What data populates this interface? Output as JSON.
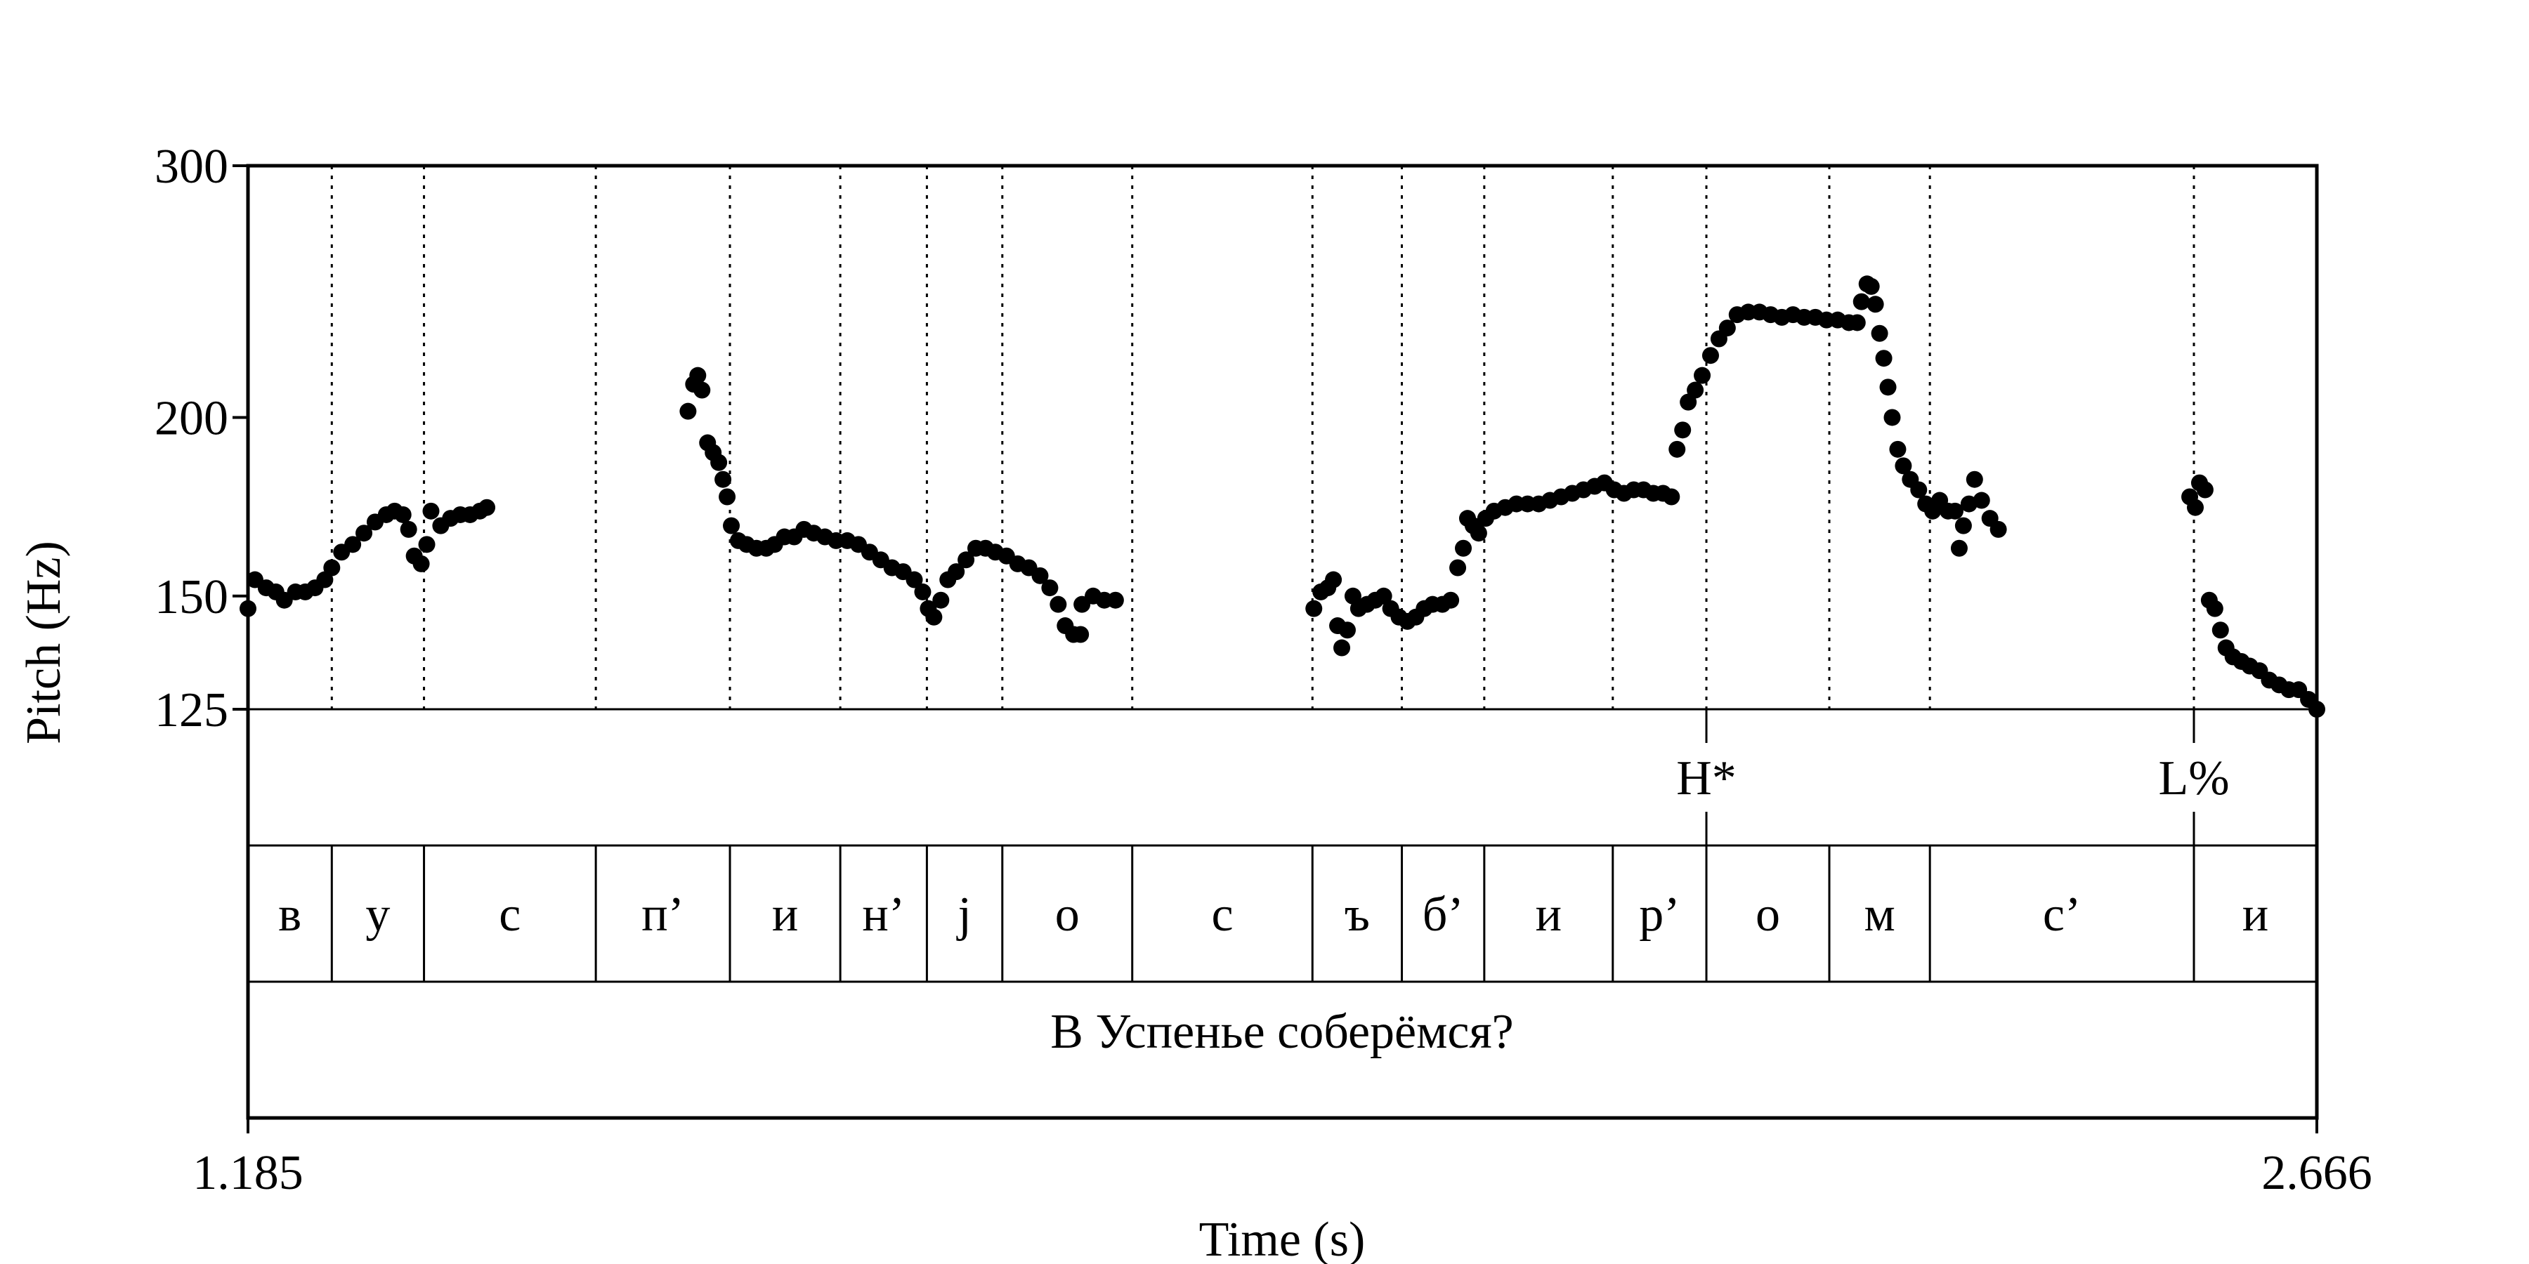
{
  "chart_data": {
    "type": "scatter",
    "ylabel": "Pitch (Hz)",
    "xlabel": "Time (s)",
    "xlim": [
      1.185,
      2.666
    ],
    "ylim": [
      125,
      300
    ],
    "y_scale": "log",
    "y_ticks": [
      "300",
      "200",
      "150",
      "125"
    ],
    "x_tick_labels": [
      "1.185",
      "2.666"
    ],
    "tones": [
      {
        "label": "H*",
        "t": 2.229
      },
      {
        "label": "L%",
        "t": 2.578
      }
    ],
    "segments": [
      {
        "label": "в",
        "start": 1.185,
        "end": 1.245
      },
      {
        "label": "у",
        "start": 1.245,
        "end": 1.311
      },
      {
        "label": "с",
        "start": 1.311,
        "end": 1.434
      },
      {
        "label": "п’",
        "start": 1.434,
        "end": 1.53
      },
      {
        "label": "и",
        "start": 1.53,
        "end": 1.609
      },
      {
        "label": "н’",
        "start": 1.609,
        "end": 1.671
      },
      {
        "label": "j",
        "start": 1.671,
        "end": 1.725
      },
      {
        "label": "о",
        "start": 1.725,
        "end": 1.818
      },
      {
        "label": "с",
        "start": 1.818,
        "end": 1.947
      },
      {
        "label": "ъ",
        "start": 1.947,
        "end": 2.011
      },
      {
        "label": "б’",
        "start": 2.011,
        "end": 2.07
      },
      {
        "label": "и",
        "start": 2.07,
        "end": 2.162
      },
      {
        "label": "р’",
        "start": 2.162,
        "end": 2.229
      },
      {
        "label": "о",
        "start": 2.229,
        "end": 2.317
      },
      {
        "label": "м",
        "start": 2.317,
        "end": 2.389
      },
      {
        "label": "с’",
        "start": 2.389,
        "end": 2.578
      },
      {
        "label": "и",
        "start": 2.578,
        "end": 2.666
      }
    ],
    "sentence": "В Успенье соберёмся?",
    "pitch_runs": [
      [
        [
          1.185,
          147
        ],
        [
          1.19,
          154
        ],
        [
          1.198,
          152
        ],
        [
          1.205,
          151
        ],
        [
          1.211,
          149
        ],
        [
          1.219,
          151
        ],
        [
          1.226,
          151
        ],
        [
          1.233,
          152
        ],
        [
          1.24,
          154
        ],
        [
          1.245,
          157
        ],
        [
          1.252,
          161
        ],
        [
          1.26,
          163
        ],
        [
          1.268,
          166
        ],
        [
          1.276,
          169
        ],
        [
          1.284,
          171
        ],
        [
          1.29,
          172
        ],
        [
          1.296,
          171
        ],
        [
          1.3,
          167
        ],
        [
          1.304,
          160
        ],
        [
          1.309,
          158
        ],
        [
          1.313,
          163
        ],
        [
          1.316,
          172
        ],
        [
          1.323,
          168
        ],
        [
          1.33,
          170
        ],
        [
          1.337,
          171
        ],
        [
          1.344,
          171
        ],
        [
          1.351,
          172
        ],
        [
          1.356,
          173
        ]
      ],
      [
        [
          1.5,
          202
        ],
        [
          1.504,
          211
        ],
        [
          1.507,
          214
        ],
        [
          1.51,
          209
        ],
        [
          1.514,
          192
        ],
        [
          1.518,
          189
        ],
        [
          1.522,
          186
        ],
        [
          1.525,
          181
        ],
        [
          1.528,
          176
        ],
        [
          1.531,
          168
        ],
        [
          1.536,
          164
        ],
        [
          1.542,
          163
        ],
        [
          1.549,
          162
        ],
        [
          1.556,
          162
        ],
        [
          1.562,
          163
        ],
        [
          1.569,
          165
        ],
        [
          1.576,
          165
        ],
        [
          1.583,
          167
        ],
        [
          1.59,
          166
        ],
        [
          1.598,
          165
        ],
        [
          1.606,
          164
        ],
        [
          1.614,
          164
        ],
        [
          1.622,
          163
        ],
        [
          1.63,
          161
        ],
        [
          1.638,
          159
        ],
        [
          1.646,
          157
        ],
        [
          1.654,
          156
        ],
        [
          1.662,
          154
        ],
        [
          1.668,
          151
        ],
        [
          1.672,
          147
        ],
        [
          1.676,
          145
        ],
        [
          1.681,
          149
        ],
        [
          1.686,
          154
        ],
        [
          1.692,
          156
        ],
        [
          1.699,
          159
        ],
        [
          1.706,
          162
        ],
        [
          1.713,
          162
        ],
        [
          1.72,
          161
        ],
        [
          1.728,
          160
        ],
        [
          1.736,
          158
        ],
        [
          1.744,
          157
        ],
        [
          1.752,
          155
        ],
        [
          1.759,
          152
        ],
        [
          1.765,
          148
        ],
        [
          1.77,
          143
        ],
        [
          1.776,
          141
        ],
        [
          1.781,
          141
        ]
      ],
      [
        [
          1.782,
          148
        ],
        [
          1.79,
          150
        ],
        [
          1.798,
          149
        ],
        [
          1.806,
          149
        ]
      ],
      [
        [
          1.948,
          147
        ],
        [
          1.953,
          151
        ],
        [
          1.958,
          152
        ],
        [
          1.962,
          154
        ],
        [
          1.965,
          143
        ],
        [
          1.968,
          138
        ],
        [
          1.972,
          142
        ],
        [
          1.976,
          150
        ],
        [
          1.98,
          147
        ],
        [
          1.986,
          148
        ],
        [
          1.992,
          149
        ],
        [
          1.998,
          150
        ],
        [
          2.003,
          147
        ],
        [
          2.009,
          145
        ],
        [
          2.015,
          144
        ],
        [
          2.021,
          145
        ],
        [
          2.027,
          147
        ],
        [
          2.033,
          148
        ],
        [
          2.04,
          148
        ],
        [
          2.046,
          149
        ],
        [
          2.051,
          157
        ],
        [
          2.055,
          162
        ],
        [
          2.058,
          170
        ],
        [
          2.062,
          168
        ],
        [
          2.066,
          166
        ],
        [
          2.071,
          170
        ],
        [
          2.077,
          172
        ],
        [
          2.085,
          173
        ],
        [
          2.093,
          174
        ],
        [
          2.101,
          174
        ],
        [
          2.109,
          174
        ],
        [
          2.117,
          175
        ],
        [
          2.125,
          176
        ],
        [
          2.133,
          177
        ],
        [
          2.141,
          178
        ],
        [
          2.149,
          179
        ],
        [
          2.156,
          180
        ],
        [
          2.163,
          178
        ],
        [
          2.17,
          177
        ],
        [
          2.177,
          178
        ],
        [
          2.184,
          178
        ],
        [
          2.191,
          177
        ],
        [
          2.198,
          177
        ],
        [
          2.204,
          176
        ],
        [
          2.208,
          190
        ],
        [
          2.212,
          196
        ],
        [
          2.216,
          205
        ],
        [
          2.221,
          209
        ],
        [
          2.226,
          214
        ],
        [
          2.232,
          221
        ],
        [
          2.238,
          227
        ],
        [
          2.244,
          231
        ],
        [
          2.251,
          236
        ],
        [
          2.259,
          237
        ],
        [
          2.267,
          237
        ],
        [
          2.275,
          236
        ],
        [
          2.283,
          235
        ],
        [
          2.291,
          236
        ],
        [
          2.299,
          235
        ],
        [
          2.307,
          235
        ],
        [
          2.315,
          234
        ],
        [
          2.323,
          234
        ],
        [
          2.331,
          233
        ],
        [
          2.337,
          233
        ],
        [
          2.34,
          241
        ],
        [
          2.344,
          248
        ],
        [
          2.347,
          247
        ],
        [
          2.35,
          240
        ],
        [
          2.353,
          229
        ],
        [
          2.356,
          220
        ],
        [
          2.359,
          210
        ],
        [
          2.362,
          200
        ],
        [
          2.366,
          190
        ],
        [
          2.37,
          185
        ],
        [
          2.375,
          181
        ],
        [
          2.381,
          178
        ],
        [
          2.386,
          174
        ],
        [
          2.391,
          172
        ],
        [
          2.396,
          175
        ],
        [
          2.402,
          172
        ],
        [
          2.407,
          172
        ],
        [
          2.41,
          162
        ],
        [
          2.413,
          168
        ],
        [
          2.417,
          174
        ],
        [
          2.421,
          181
        ],
        [
          2.426,
          175
        ],
        [
          2.432,
          170
        ],
        [
          2.438,
          167
        ]
      ],
      [
        [
          2.575,
          176
        ],
        [
          2.579,
          173
        ],
        [
          2.582,
          180
        ],
        [
          2.586,
          178
        ],
        [
          2.589,
          149
        ],
        [
          2.593,
          147
        ],
        [
          2.597,
          142
        ],
        [
          2.601,
          138
        ],
        [
          2.606,
          136
        ],
        [
          2.612,
          135
        ],
        [
          2.618,
          134
        ],
        [
          2.625,
          133
        ],
        [
          2.632,
          131
        ],
        [
          2.639,
          130
        ],
        [
          2.646,
          129
        ],
        [
          2.653,
          129
        ],
        [
          2.66,
          127
        ],
        [
          2.666,
          125
        ]
      ]
    ]
  }
}
